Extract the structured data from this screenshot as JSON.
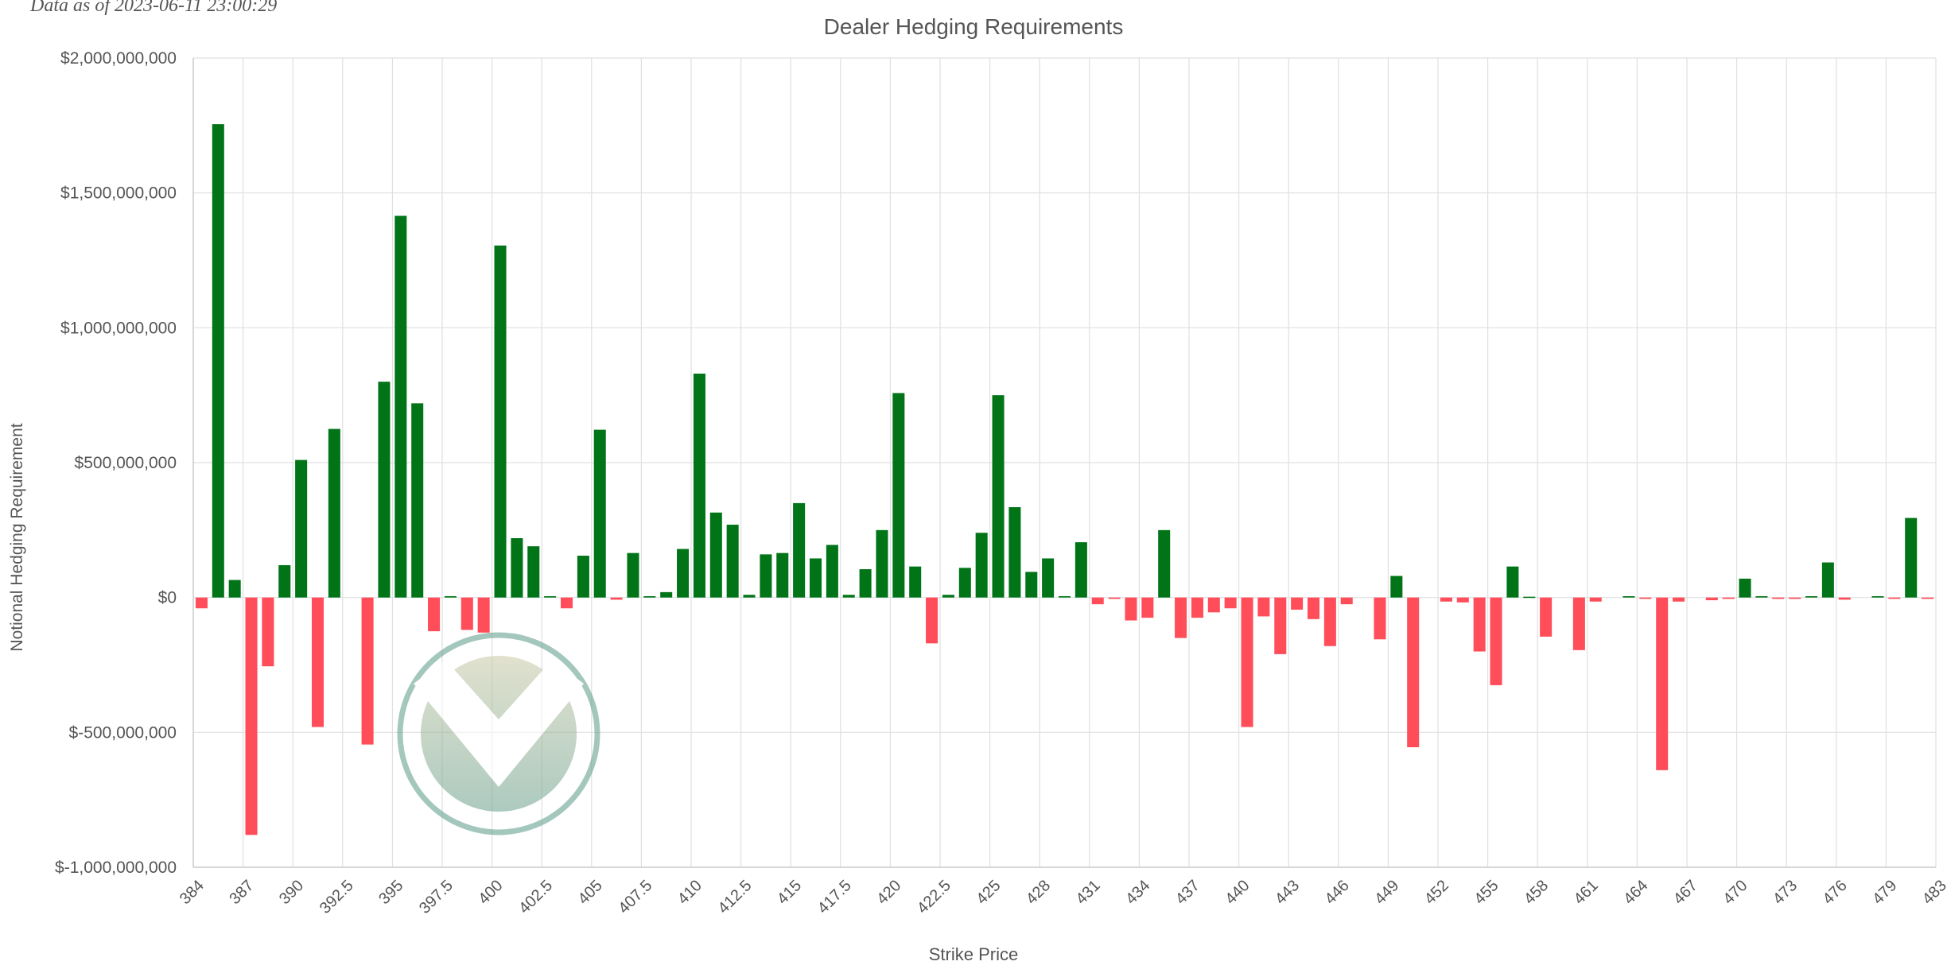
{
  "asof_text": "Data as of 2023-06-11 23:00:29",
  "chart_data": {
    "type": "bar",
    "title": "Dealer Hedging Requirements",
    "xlabel": "Strike Price",
    "ylabel": "Notional Hedging Requirement",
    "ylim": [
      -1000000000,
      2000000000
    ],
    "y_ticks": [
      "$2,000,000,000",
      "$1,500,000,000",
      "$1,000,000,000",
      "$500,000,000",
      "$0",
      "$-500,000,000",
      "$-1,000,000,000"
    ],
    "y_tick_values": [
      2000000000,
      1500000000,
      1000000000,
      500000000,
      0,
      -500000000,
      -1000000000
    ],
    "x_tick_labels": [
      "384",
      "387",
      "390",
      "392.5",
      "395",
      "397.5",
      "400",
      "402.5",
      "405",
      "407.5",
      "410",
      "412.5",
      "415",
      "417.5",
      "420",
      "422.5",
      "425",
      "428",
      "431",
      "434",
      "437",
      "440",
      "443",
      "446",
      "449",
      "452",
      "455",
      "458",
      "461",
      "464",
      "467",
      "470",
      "473",
      "476",
      "479",
      "483"
    ],
    "grid": true,
    "colors": {
      "positive": "#007417",
      "negative": "#ff4d5a"
    },
    "values": [
      -40000000,
      1755000000,
      65000000,
      -880000000,
      -255000000,
      120000000,
      510000000,
      -480000000,
      625000000,
      0,
      -545000000,
      800000000,
      1415000000,
      720000000,
      -125000000,
      5000000,
      -120000000,
      -130000000,
      1305000000,
      220000000,
      190000000,
      5000000,
      -40000000,
      155000000,
      622000000,
      -8000000,
      165000000,
      5000000,
      20000000,
      180000000,
      830000000,
      315000000,
      270000000,
      10000000,
      160000000,
      165000000,
      350000000,
      145000000,
      195000000,
      10000000,
      105000000,
      250000000,
      758000000,
      115000000,
      -170000000,
      10000000,
      110000000,
      240000000,
      750000000,
      335000000,
      95000000,
      145000000,
      5000000,
      205000000,
      -25000000,
      -5000000,
      -85000000,
      -75000000,
      250000000,
      -150000000,
      -75000000,
      -55000000,
      -40000000,
      -480000000,
      -70000000,
      -210000000,
      -45000000,
      -80000000,
      -180000000,
      -25000000,
      0,
      -155000000,
      80000000,
      -555000000,
      0,
      -15000000,
      -18000000,
      -200000000,
      -325000000,
      115000000,
      3000000,
      -145000000,
      0,
      -195000000,
      -15000000,
      0,
      5000000,
      -5000000,
      -640000000,
      -15000000,
      0,
      -10000000,
      -5000000,
      70000000,
      5000000,
      -5000000,
      -5000000,
      5000000,
      130000000,
      -8000000,
      0,
      5000000,
      -5000000,
      295000000,
      -5000000
    ]
  }
}
